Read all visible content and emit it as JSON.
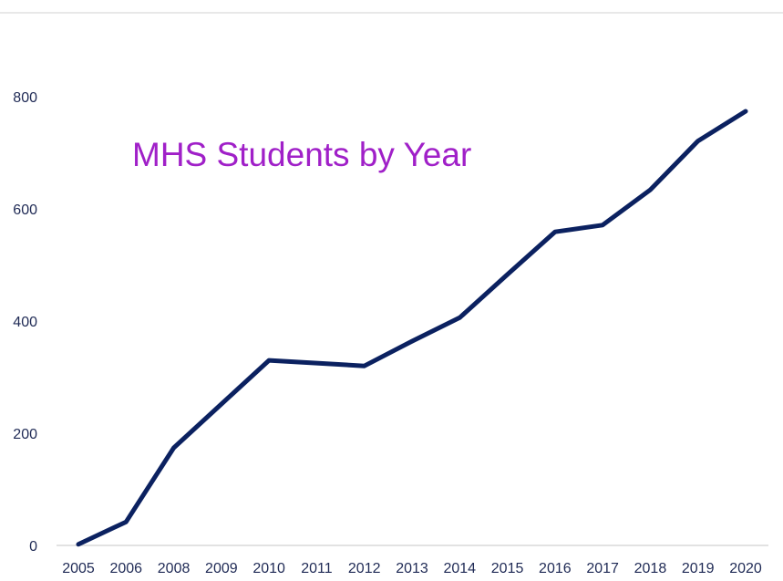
{
  "chart_data": {
    "type": "line",
    "title": "MHS Students by Year",
    "xlabel": "",
    "ylabel": "",
    "categories": [
      "2005",
      "2006",
      "2008",
      "2009",
      "2010",
      "2011",
      "2012",
      "2013",
      "2014",
      "2015",
      "2016",
      "2017",
      "2018",
      "2019",
      "2020"
    ],
    "series": [
      {
        "values": [
          2,
          42,
          174,
          252,
          330,
          325,
          320,
          364,
          406,
          483,
          559,
          571,
          634,
          721,
          774
        ]
      }
    ],
    "y_tick_labels": [
      "0",
      "200",
      "400",
      "600",
      "800"
    ],
    "y_ticks": [
      0,
      200,
      400,
      600,
      800
    ],
    "ylim": [
      0,
      800
    ],
    "grid": false,
    "legend": "none",
    "colors": {
      "line": "#0b2160",
      "title": "#a020c8",
      "axis": "#d9d9d9",
      "labels": "#1f2a55"
    }
  }
}
